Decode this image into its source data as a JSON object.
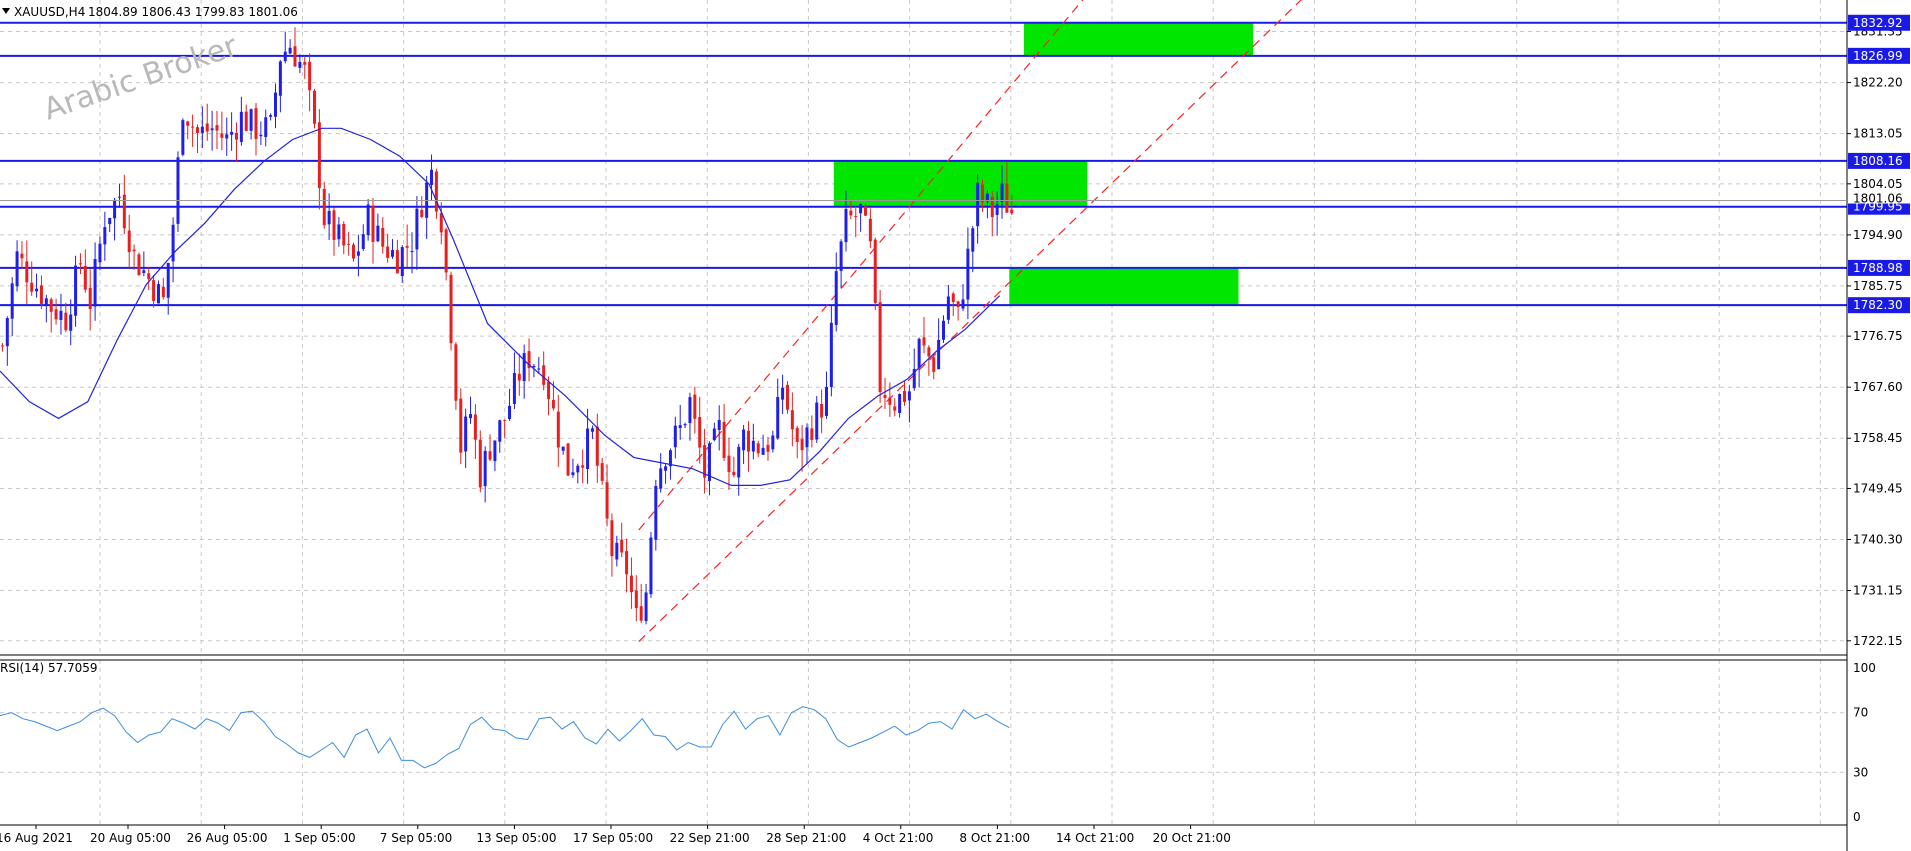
{
  "header": {
    "symbol": "XAUUSD,H4",
    "ohlc": "1804.89 1806.43 1799.83 1801.06"
  },
  "watermark": "Arabic Broker",
  "rsi_header": "RSI(14) 57.7059",
  "colors": {
    "up_candle": "#1f1fe8",
    "down_candle": "#e81f1f",
    "level_line": "#1a1ae6",
    "ma_line": "#2222dd",
    "zone": "#00e600",
    "channel": "#ff2020",
    "grid": "#c8c8c8",
    "rsi_line": "#3c8ddc",
    "tag_bg": "#1a1ae6"
  },
  "chart_data": [
    {
      "type": "candlestick",
      "name": "XAUUSD H4",
      "ylim": [
        1719.6,
        1837.0
      ],
      "y_ticks": [
        1722.15,
        1731.15,
        1740.3,
        1749.45,
        1758.45,
        1767.6,
        1776.75,
        1785.75,
        1794.9,
        1804.05,
        1813.05,
        1822.2,
        1831.35
      ],
      "x_labels": [
        "16 Aug 2021",
        "20 Aug 05:00",
        "26 Aug 05:00",
        "1 Sep 05:00",
        "7 Sep 05:00",
        "13 Sep 05:00",
        "17 Sep 05:00",
        "22 Sep 21:00",
        "28 Sep 21:00",
        "4 Oct 21:00",
        "8 Oct 21:00",
        "14 Oct 21:00",
        "20 Oct 21:00"
      ],
      "levels": [
        {
          "value": 1832.92,
          "label": "1832.92"
        },
        {
          "value": 1826.99,
          "label": "1826.99"
        },
        {
          "value": 1808.16,
          "label": "1808.16"
        },
        {
          "value": 1799.95,
          "label": "1799.95"
        },
        {
          "value": 1788.98,
          "label": "1788.98"
        },
        {
          "value": 1782.3,
          "label": "1782.30"
        }
      ],
      "current_price": {
        "value": 1801.06,
        "label": "1801.06"
      },
      "zones": [
        {
          "from_bar": 210,
          "to_bar": 257,
          "y_low": 1826.99,
          "y_high": 1832.92
        },
        {
          "from_bar": 171,
          "to_bar": 223,
          "y_low": 1799.95,
          "y_high": 1808.16
        },
        {
          "from_bar": 207,
          "to_bar": 254,
          "y_low": 1782.3,
          "y_high": 1788.98
        }
      ],
      "channel_lines": [
        {
          "bar_start": 131,
          "value_start": 1742.0,
          "bar_end": 223,
          "value_end": 1838.0
        },
        {
          "bar_start": 131,
          "value_start": 1722.0,
          "bar_end": 268,
          "value_end": 1838.0
        }
      ],
      "ma_points": [
        [
          0,
          1770.5
        ],
        [
          6,
          1765
        ],
        [
          12,
          1762
        ],
        [
          18,
          1765
        ],
        [
          24,
          1776
        ],
        [
          30,
          1786
        ],
        [
          36,
          1792
        ],
        [
          42,
          1797
        ],
        [
          48,
          1803
        ],
        [
          54,
          1808
        ],
        [
          60,
          1812
        ],
        [
          66,
          1814
        ],
        [
          70,
          1814
        ],
        [
          76,
          1812
        ],
        [
          82,
          1809
        ],
        [
          88,
          1804
        ],
        [
          93,
          1794
        ],
        [
          100,
          1779
        ],
        [
          108,
          1772
        ],
        [
          116,
          1766
        ],
        [
          124,
          1759
        ],
        [
          130,
          1755
        ],
        [
          136,
          1754
        ],
        [
          142,
          1753
        ],
        [
          150,
          1750
        ],
        [
          156,
          1750
        ],
        [
          162,
          1751
        ],
        [
          168,
          1756
        ],
        [
          174,
          1762
        ],
        [
          180,
          1766
        ],
        [
          186,
          1769
        ],
        [
          192,
          1774
        ],
        [
          198,
          1778
        ],
        [
          205,
          1784
        ]
      ],
      "path_points": [
        [
          0,
          1775
        ],
        [
          3,
          1791
        ],
        [
          6,
          1787
        ],
        [
          10,
          1782
        ],
        [
          13,
          1780
        ],
        [
          16,
          1790
        ],
        [
          18,
          1783
        ],
        [
          21,
          1798
        ],
        [
          24,
          1802
        ],
        [
          27,
          1791
        ],
        [
          30,
          1787
        ],
        [
          33,
          1783
        ],
        [
          35,
          1797
        ],
        [
          37,
          1818
        ],
        [
          40,
          1813
        ],
        [
          43,
          1814
        ],
        [
          46,
          1812
        ],
        [
          49,
          1816
        ],
        [
          52,
          1814
        ],
        [
          55,
          1814
        ],
        [
          57,
          1827
        ],
        [
          59,
          1829
        ],
        [
          62,
          1824
        ],
        [
          64,
          1813
        ],
        [
          66,
          1798
        ],
        [
          69,
          1794
        ],
        [
          72,
          1790
        ],
        [
          75,
          1798
        ],
        [
          78,
          1793
        ],
        [
          81,
          1791
        ],
        [
          84,
          1794
        ],
        [
          86,
          1801
        ],
        [
          88,
          1806
        ],
        [
          90,
          1798
        ],
        [
          92,
          1778
        ],
        [
          94,
          1757
        ],
        [
          96,
          1763
        ],
        [
          98,
          1752
        ],
        [
          100,
          1757
        ],
        [
          103,
          1762
        ],
        [
          106,
          1770
        ],
        [
          108,
          1773
        ],
        [
          111,
          1771
        ],
        [
          114,
          1759
        ],
        [
          116,
          1753
        ],
        [
          119,
          1756
        ],
        [
          121,
          1759
        ],
        [
          123,
          1748
        ],
        [
          125,
          1738
        ],
        [
          128,
          1735
        ],
        [
          130,
          1726
        ],
        [
          132,
          1731
        ],
        [
          134,
          1752
        ],
        [
          136,
          1756
        ],
        [
          139,
          1760
        ],
        [
          141,
          1765
        ],
        [
          144,
          1752
        ],
        [
          147,
          1760
        ],
        [
          150,
          1752
        ],
        [
          152,
          1759
        ],
        [
          155,
          1757
        ],
        [
          158,
          1758
        ],
        [
          160,
          1768
        ],
        [
          163,
          1756
        ],
        [
          166,
          1761
        ],
        [
          169,
          1766
        ],
        [
          171,
          1788
        ],
        [
          173,
          1797
        ],
        [
          176,
          1799
        ],
        [
          178,
          1792
        ],
        [
          180,
          1768
        ],
        [
          183,
          1765
        ],
        [
          186,
          1767
        ],
        [
          188,
          1775
        ],
        [
          191,
          1772
        ],
        [
          194,
          1784
        ],
        [
          196,
          1780
        ],
        [
          198,
          1791
        ],
        [
          200,
          1802
        ],
        [
          203,
          1799
        ],
        [
          205,
          1802
        ],
        [
          207,
          1799
        ]
      ]
    },
    {
      "type": "line",
      "name": "RSI(14)",
      "ylim": [
        0,
        100
      ],
      "y_ticks": [
        0,
        30,
        70,
        100
      ],
      "values": [
        68,
        70,
        66,
        64,
        61,
        58,
        61,
        64,
        70,
        73,
        68,
        57,
        50,
        55,
        57,
        66,
        63,
        59,
        66,
        63,
        58,
        70,
        71,
        64,
        54,
        49,
        43,
        40,
        45,
        50,
        40,
        55,
        59,
        43,
        53,
        38,
        38,
        33,
        36,
        42,
        46,
        62,
        67,
        59,
        58,
        53,
        52,
        66,
        67,
        59,
        64,
        53,
        49,
        59,
        51,
        58,
        66,
        55,
        54,
        45,
        50,
        47,
        47,
        62,
        71,
        59,
        66,
        68,
        55,
        70,
        74,
        72,
        66,
        52,
        47,
        50,
        53,
        57,
        61,
        55,
        58,
        63,
        64,
        59,
        72,
        66,
        69,
        64,
        60
      ]
    }
  ]
}
